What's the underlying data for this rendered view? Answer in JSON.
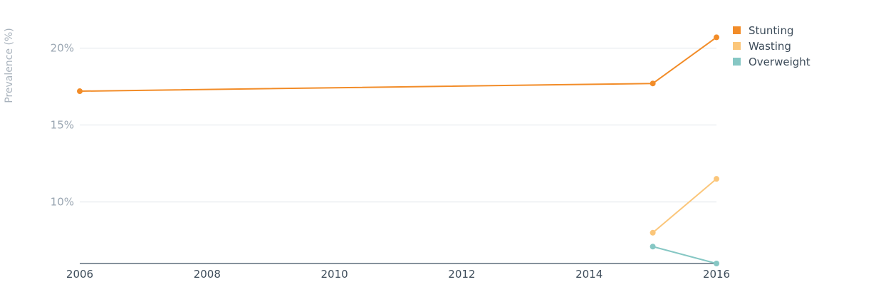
{
  "chart_data": {
    "type": "line",
    "title": "",
    "xlabel": "",
    "ylabel": "Prevalence (%)",
    "xlim": [
      2006,
      2016
    ],
    "ylim": [
      6,
      22.2
    ],
    "x_ticks": [
      2006,
      2008,
      2010,
      2012,
      2014,
      2016
    ],
    "y_ticks": [
      {
        "value": 10,
        "label": "10%"
      },
      {
        "value": 15,
        "label": "15%"
      },
      {
        "value": 20,
        "label": "20%"
      }
    ],
    "grid": true,
    "legend_position": "top-right",
    "series": [
      {
        "name": "Stunting",
        "color": "#f28c28",
        "points": [
          {
            "x": 2006,
            "y": 17.2
          },
          {
            "x": 2015,
            "y": 17.7
          },
          {
            "x": 2016,
            "y": 20.7
          }
        ]
      },
      {
        "name": "Wasting",
        "color": "#fbc67a",
        "points": [
          {
            "x": 2015,
            "y": 8.0
          },
          {
            "x": 2016,
            "y": 11.5
          }
        ]
      },
      {
        "name": "Overweight",
        "color": "#86c7c4",
        "points": [
          {
            "x": 2015,
            "y": 7.1
          },
          {
            "x": 2016,
            "y": 6.0
          }
        ]
      }
    ]
  }
}
